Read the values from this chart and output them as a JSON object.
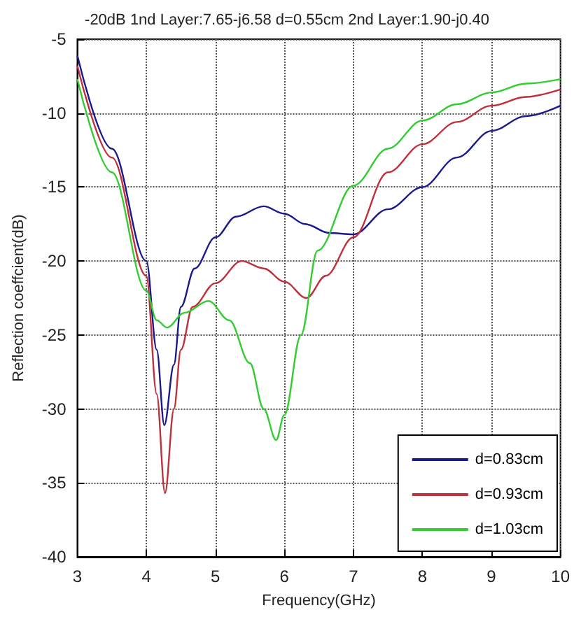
{
  "chart_data": {
    "type": "line",
    "title": "-20dB 1nd Layer:7.65-j6.58 d=0.55cm 2nd Layer:1.90-j0.40",
    "xlabel": "Frequency(GHz)",
    "ylabel": "Reflection coeffcient(dB)",
    "xlim": [
      3,
      10
    ],
    "xticks": [
      3,
      4,
      5,
      6,
      7,
      8,
      9,
      10
    ],
    "ylim": [
      -40,
      -5
    ],
    "yticks": [
      -40,
      -35,
      -30,
      -25,
      -20,
      -15,
      -10,
      -5
    ],
    "grid": true,
    "legend": "bottom right",
    "marker": "none",
    "line_style": "solid",
    "series": [
      {
        "name": "d=0.83cm",
        "color": "#1a1a8c",
        "x": [
          3,
          3.5,
          4,
          4.15,
          4.26,
          4.4,
          4.5,
          4.7,
          5,
          5.3,
          5.7,
          6,
          6.3,
          6.65,
          7,
          7.5,
          8,
          8.5,
          9,
          9.5,
          10
        ],
        "values": [
          -6.1,
          -12.4,
          -20,
          -26,
          -31.1,
          -27,
          -23.1,
          -20.5,
          -18.4,
          -17,
          -16.3,
          -16.8,
          -17.5,
          -18.1,
          -18.2,
          -16.5,
          -15,
          -13,
          -11.2,
          -10.2,
          -9.5
        ]
      },
      {
        "name": "d=0.93cm",
        "color": "#c0303a",
        "x": [
          3,
          3.5,
          4,
          4.15,
          4.27,
          4.4,
          4.5,
          4.67,
          5,
          5.38,
          5.7,
          6,
          6.32,
          6.6,
          7,
          7.5,
          8,
          8.5,
          9,
          9.5,
          10
        ],
        "values": [
          -6.8,
          -13,
          -21,
          -29,
          -35.7,
          -30,
          -26,
          -23.1,
          -21.5,
          -20,
          -20.5,
          -21.4,
          -22.5,
          -21,
          -18.4,
          -14,
          -12.1,
          -10.6,
          -9.5,
          -8.9,
          -8.4
        ]
      },
      {
        "name": "d=1.03cm",
        "color": "#33cc33",
        "x": [
          3,
          3.5,
          4,
          4.15,
          4.3,
          4.55,
          4.9,
          5.2,
          5.5,
          5.7,
          5.88,
          6,
          6.24,
          6.48,
          7,
          7.5,
          8,
          8.5,
          9,
          9.5,
          10
        ],
        "values": [
          -7.7,
          -14,
          -22,
          -24,
          -24.5,
          -23.5,
          -22.7,
          -24,
          -26.9,
          -30,
          -32.1,
          -30.4,
          -25,
          -19.3,
          -14.9,
          -12.4,
          -10.5,
          -9.4,
          -8.6,
          -8,
          -7.7
        ]
      }
    ]
  }
}
